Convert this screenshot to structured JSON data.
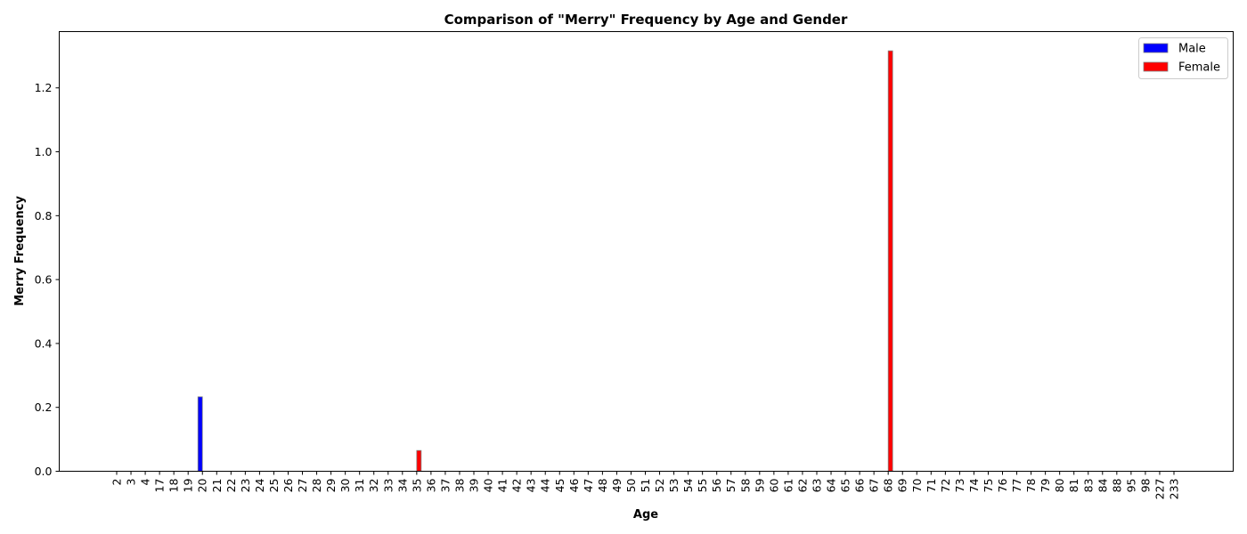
{
  "chart_data": {
    "type": "bar",
    "title": "Comparison of \"Merry\" Frequency by Age and Gender",
    "xlabel": "Age",
    "ylabel": "Merry Frequency",
    "ylim": [
      0,
      1.3762
    ],
    "yticks": [
      "0.0",
      "0.2",
      "0.4",
      "0.6",
      "0.8",
      "1.0",
      "1.2"
    ],
    "grid": false,
    "legend_position": "top-right",
    "categories": [
      "2",
      "3",
      "4",
      "17",
      "18",
      "19",
      "20",
      "21",
      "22",
      "23",
      "24",
      "25",
      "26",
      "27",
      "28",
      "29",
      "30",
      "31",
      "32",
      "33",
      "34",
      "35",
      "36",
      "37",
      "38",
      "39",
      "40",
      "41",
      "42",
      "43",
      "44",
      "45",
      "46",
      "47",
      "48",
      "49",
      "50",
      "51",
      "52",
      "53",
      "54",
      "55",
      "56",
      "57",
      "58",
      "59",
      "60",
      "61",
      "62",
      "63",
      "64",
      "65",
      "66",
      "67",
      "68",
      "69",
      "70",
      "71",
      "72",
      "73",
      "74",
      "75",
      "76",
      "77",
      "78",
      "79",
      "80",
      "81",
      "83",
      "84",
      "88",
      "95",
      "98",
      "227",
      "233"
    ],
    "series": [
      {
        "name": "Male",
        "color": "#0000ff",
        "values": [
          0,
          0,
          0,
          0,
          0,
          0,
          0.233,
          0,
          0,
          0,
          0,
          0,
          0,
          0,
          0,
          0,
          0,
          0,
          0,
          0,
          0,
          0,
          0,
          0,
          0,
          0,
          0,
          0,
          0,
          0,
          0,
          0,
          0,
          0,
          0,
          0,
          0,
          0,
          0,
          0,
          0,
          0,
          0,
          0,
          0,
          0,
          0,
          0,
          0,
          0,
          0,
          0,
          0,
          0,
          0,
          0,
          0,
          0,
          0,
          0,
          0,
          0,
          0,
          0,
          0,
          0,
          0,
          0,
          0,
          0,
          0,
          0,
          0,
          0,
          0
        ]
      },
      {
        "name": "Female",
        "color": "#ff0000",
        "values": [
          0,
          0,
          0,
          0,
          0,
          0,
          0,
          0,
          0,
          0,
          0,
          0,
          0,
          0,
          0,
          0,
          0,
          0,
          0,
          0,
          0,
          0.065,
          0,
          0,
          0,
          0,
          0,
          0,
          0,
          0,
          0,
          0,
          0,
          0,
          0,
          0,
          0,
          0,
          0,
          0,
          0,
          0,
          0,
          0,
          0,
          0,
          0,
          0,
          0,
          0,
          0,
          0,
          0,
          0,
          1.316,
          0,
          0,
          0,
          0,
          0,
          0,
          0,
          0,
          0,
          0,
          0,
          0,
          0,
          0,
          0,
          0,
          0,
          0,
          0,
          0
        ]
      }
    ]
  }
}
